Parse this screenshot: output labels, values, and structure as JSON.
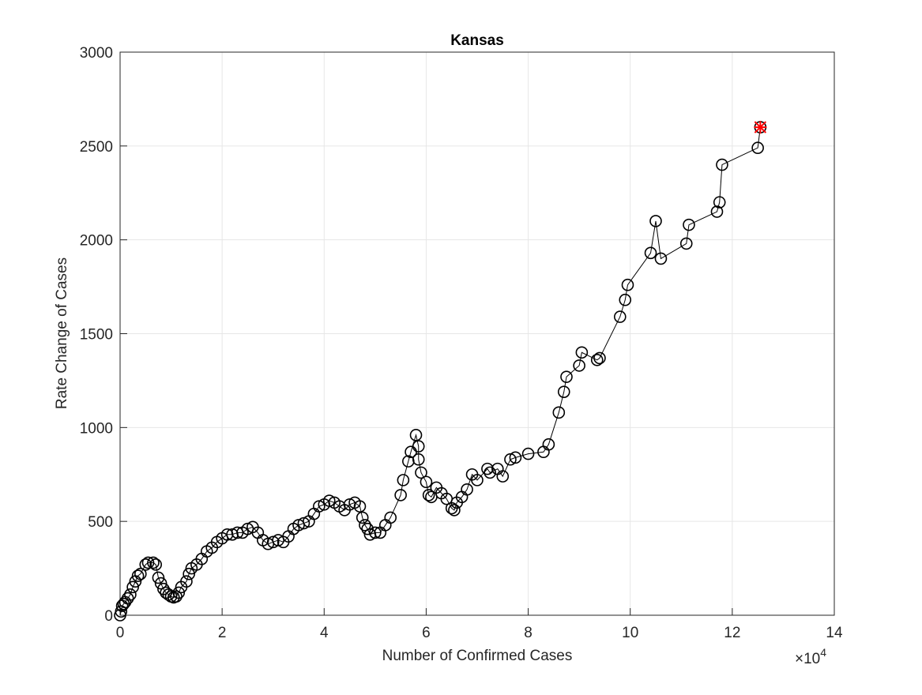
{
  "chart_data": {
    "type": "line",
    "title": "Kansas",
    "xlabel": "Number of Confirmed Cases",
    "ylabel": "Rate Change of Cases",
    "x_multiplier": {
      "base": "×10",
      "exponent": "4"
    },
    "xlim": [
      0,
      140000
    ],
    "ylim": [
      0,
      3000
    ],
    "xticks": [
      0,
      {
        "value": 20000,
        "label": "2"
      },
      {
        "value": 40000,
        "label": "4"
      },
      {
        "value": 60000,
        "label": "6"
      },
      {
        "value": 80000,
        "label": "8"
      },
      {
        "value": 100000,
        "label": "10"
      },
      {
        "value": 120000,
        "label": "12"
      },
      {
        "value": 140000,
        "label": "14"
      }
    ],
    "yticks": [
      0,
      500,
      1000,
      1500,
      2000,
      2500,
      3000
    ],
    "grid": true,
    "color": "#000000",
    "highlight_color": "#ff0000",
    "x": [
      0,
      200,
      400,
      700,
      1000,
      1500,
      2000,
      2500,
      3000,
      3500,
      4000,
      5000,
      5500,
      6500,
      7000,
      7500,
      8000,
      8500,
      9000,
      9500,
      10000,
      10500,
      11000,
      11500,
      12000,
      13000,
      13500,
      14000,
      15000,
      16000,
      17000,
      18000,
      19000,
      20000,
      21000,
      22000,
      23000,
      24000,
      25000,
      26000,
      27000,
      28000,
      29000,
      30000,
      31000,
      32000,
      33000,
      34000,
      35000,
      36000,
      37000,
      38000,
      39000,
      40000,
      41000,
      42000,
      43000,
      44000,
      45000,
      46000,
      47000,
      47500,
      48000,
      48500,
      49000,
      50000,
      51000,
      52000,
      53000,
      55000,
      55500,
      56500,
      57000,
      58000,
      58500,
      58500,
      59000,
      60000,
      60500,
      61000,
      62000,
      63000,
      64000,
      65000,
      65500,
      66000,
      67000,
      68000,
      69000,
      70000,
      72000,
      72500,
      74000,
      75000,
      76500,
      77500,
      80000,
      83000,
      84000,
      86000,
      87000,
      87500,
      90000,
      90500,
      93500,
      94000,
      98000,
      99000,
      99500,
      104000,
      105000,
      106000,
      111000,
      111500,
      117000,
      117500,
      118000,
      125000,
      125500
    ],
    "values": [
      0,
      20,
      50,
      60,
      70,
      90,
      110,
      150,
      180,
      210,
      220,
      270,
      280,
      280,
      270,
      200,
      170,
      140,
      120,
      110,
      100,
      95,
      100,
      120,
      150,
      180,
      220,
      250,
      270,
      300,
      340,
      360,
      390,
      410,
      430,
      430,
      440,
      440,
      460,
      470,
      440,
      400,
      380,
      390,
      400,
      390,
      420,
      460,
      480,
      490,
      500,
      540,
      580,
      590,
      610,
      600,
      580,
      560,
      590,
      600,
      580,
      520,
      480,
      460,
      430,
      440,
      440,
      480,
      520,
      640,
      720,
      820,
      870,
      960,
      900,
      830,
      760,
      710,
      640,
      630,
      680,
      650,
      620,
      570,
      560,
      600,
      630,
      670,
      750,
      720,
      780,
      760,
      780,
      740,
      830,
      840,
      860,
      870,
      910,
      1080,
      1190,
      1270,
      1330,
      1400,
      1360,
      1370,
      1590,
      1680,
      1760,
      1930,
      2100,
      1900,
      1980,
      2080,
      2150,
      2200,
      2400,
      2490,
      2600
    ]
  }
}
